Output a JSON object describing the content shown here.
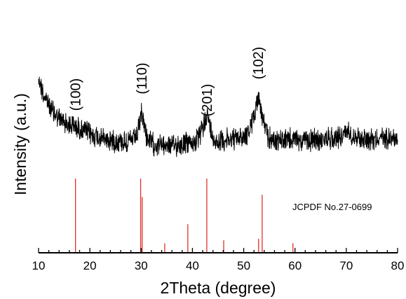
{
  "chart_data": {
    "type": "line",
    "xlabel": "2Theta (degree)",
    "ylabel": "Intensity (a.u.)",
    "xlim": [
      10,
      80
    ],
    "x_ticks": [
      "10",
      "20",
      "30",
      "40",
      "50",
      "60",
      "70",
      "80"
    ],
    "y_ticks_labeled": false,
    "grid": false,
    "colors": {
      "pattern": "#000000",
      "reference": "#e0302a"
    },
    "peaks": [
      {
        "label": "(100)",
        "x": 17.2
      },
      {
        "label": "(110)",
        "x": 30.1
      },
      {
        "label": "(201)",
        "x": 42.8
      },
      {
        "label": "(102)",
        "x": 52.8
      }
    ],
    "pattern_profile": {
      "x": [
        10,
        11,
        12,
        13,
        14,
        15,
        16,
        17,
        18,
        19,
        20,
        21,
        22,
        23,
        24,
        25,
        26,
        27,
        28,
        29,
        29.6,
        30.1,
        30.6,
        31,
        32,
        33,
        34,
        35,
        36,
        37,
        38,
        39,
        40,
        41,
        42,
        42.4,
        42.8,
        43.2,
        44,
        45,
        46,
        47,
        48,
        49,
        50,
        51,
        51.8,
        52.4,
        52.8,
        53.2,
        53.8,
        54.5,
        55,
        56,
        57,
        58,
        59,
        60,
        61,
        62,
        63,
        64,
        65,
        66,
        67,
        68,
        69,
        70,
        70.5,
        71,
        72,
        73,
        74,
        75,
        76,
        77,
        78,
        79,
        80
      ],
      "y": [
        100,
        82,
        72,
        64,
        58,
        55,
        52,
        50,
        48,
        45,
        42,
        40,
        38,
        37,
        36,
        35,
        35,
        34,
        35,
        38,
        48,
        64,
        52,
        40,
        32,
        31,
        31,
        31,
        30,
        31,
        32,
        33,
        33,
        36,
        47,
        55,
        64,
        54,
        37,
        35,
        36,
        36,
        37,
        38,
        40,
        44,
        56,
        72,
        80,
        72,
        55,
        42,
        38,
        36,
        36,
        36,
        37,
        36,
        36,
        35,
        35,
        36,
        36,
        37,
        38,
        39,
        40,
        44,
        46,
        42,
        39,
        38,
        38,
        37,
        38,
        38,
        38,
        39,
        38
      ],
      "ylim": [
        0,
        128
      ]
    },
    "reference": {
      "label": "JCPDF No.27-0699",
      "x": [
        17.2,
        29.9,
        30.2,
        34.6,
        39.1,
        42.8,
        46.1,
        52.9,
        53.6,
        59.6
      ],
      "intensity": [
        100,
        100,
        75,
        12,
        38,
        100,
        16,
        18,
        78,
        12
      ]
    }
  }
}
